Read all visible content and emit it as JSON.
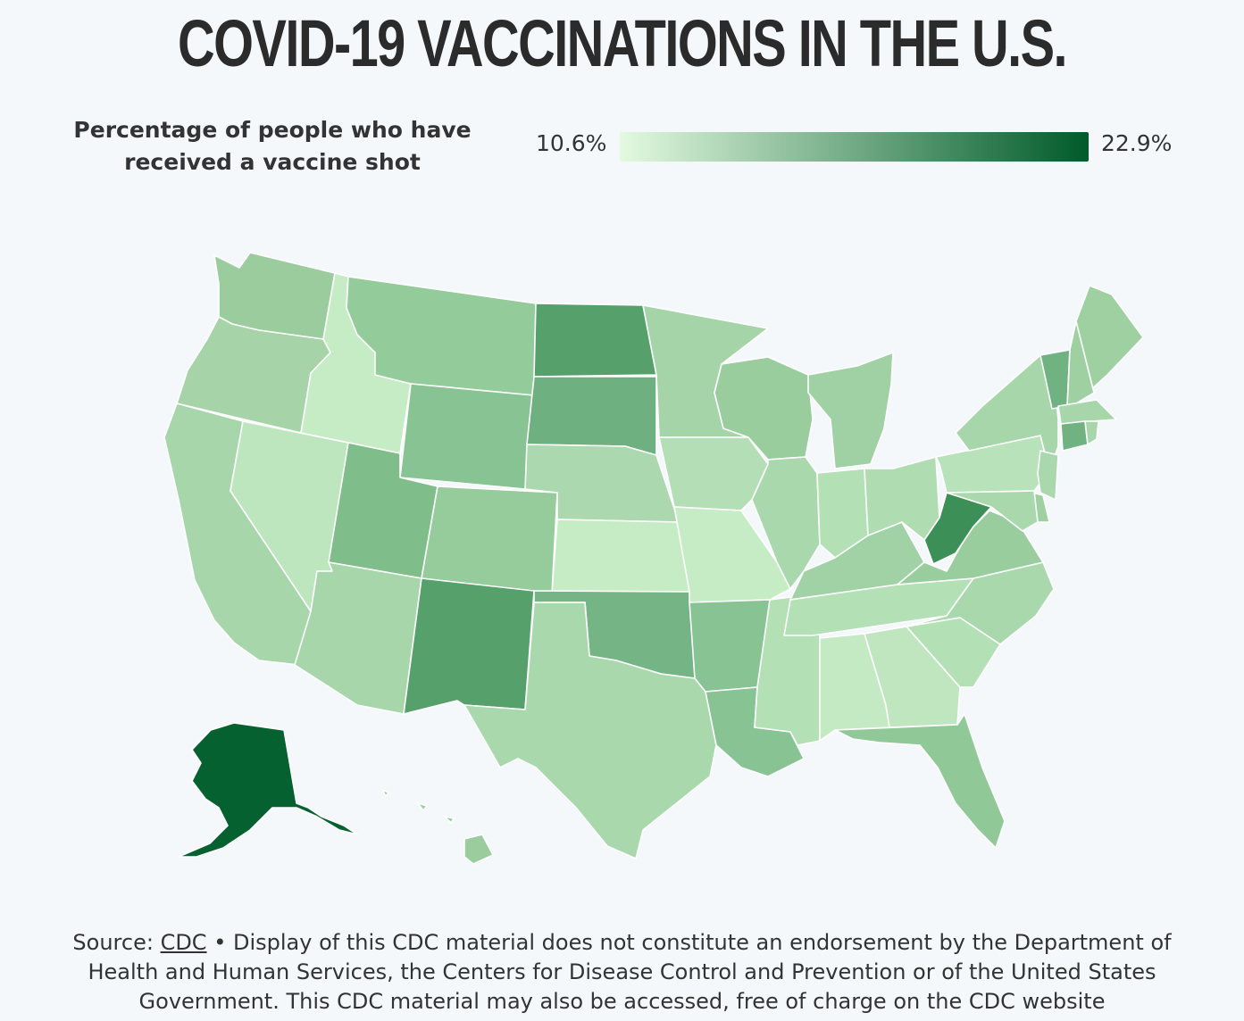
{
  "title": "COVID-19 VACCINATIONS IN THE U.S.",
  "legend": {
    "title_line1": "Percentage of people who have",
    "title_line2": "received a vaccine shot",
    "min_label": "10.6%",
    "max_label": "22.9%",
    "min_value": 10.6,
    "max_value": 22.9,
    "color_low": "#e3fae0",
    "color_high": "#005a2a"
  },
  "source": {
    "prefix": "Source: ",
    "link_text": "CDC",
    "text": " • Display of this CDC material does not constitute an endorsement by the Department of Health and Human Services, the Centers for Disease Control and Prevention or of the United States Government. This CDC material may also be accessed, free of charge on the CDC website"
  },
  "chart_data": {
    "type": "choropleth",
    "colors": {
      "WA": "#9acc9e",
      "OR": "#a6d3a8",
      "CA": "#a7d6ab",
      "NV": "#bde6bf",
      "ID": "#c6ecc6",
      "MT": "#94cb9a",
      "WY": "#88c393",
      "UT": "#7fbd8a",
      "AZ": "#a6d6aa",
      "CO": "#96cb9c",
      "NM": "#56a06b",
      "ND": "#56a06b",
      "SD": "#6eb07f",
      "NE": "#abd8ae",
      "KS": "#c6ecc6",
      "OK": "#74b485",
      "TX": "#a9d8ad",
      "MN": "#a5d4a9",
      "IA": "#b4dfb6",
      "MO": "#c6ecc6",
      "AR": "#88c393",
      "LA": "#88c393",
      "WI": "#99cd9e",
      "IL": "#aad8ad",
      "MS": "#b4e0b6",
      "MI": "#a0d1a4",
      "IN": "#b4e0b6",
      "KY": "#a1d2a5",
      "TN": "#b4e0b6",
      "AL": "#c4eac4",
      "OH": "#b0dcb2",
      "GA": "#c0e6c0",
      "FL": "#90c898",
      "SC": "#b4e0b6",
      "NC": "#a9d8ad",
      "VA": "#99cd9e",
      "WV": "#3c8f56",
      "PA": "#b8e2b9",
      "NY": "#a6d6aa",
      "ME": "#9fd0a2",
      "VT": "#70b281",
      "NH": "#9fd0a2",
      "MA": "#a6d6aa",
      "CT": "#70b281",
      "RI": "#a6d6aa",
      "NJ": "#a9d8ad",
      "DE": "#9fd0a2",
      "MD": "#aad8ad",
      "AK": "#05612f",
      "HI": "#9acc9e"
    }
  }
}
